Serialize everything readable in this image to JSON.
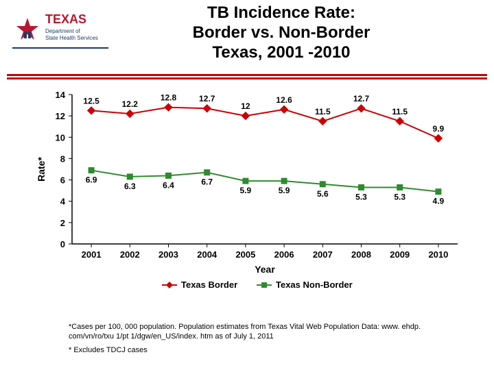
{
  "title": {
    "text": "TB Incidence Rate: Border vs. Non-Border Texas, 2001 -2010",
    "line1": "TB Incidence Rate:",
    "line2": "Border vs. Non-Border",
    "line3": "Texas, 2001 -2010",
    "fontsize": 24,
    "color": "#000000"
  },
  "logo": {
    "name": "Texas Department of State Health Services",
    "text_top": "TEXAS",
    "text_bottom": "Department of State Health Services",
    "accent_color": "#b7182e",
    "navy_color": "#1b3a66"
  },
  "rules": {
    "color": "#cc0000"
  },
  "chart": {
    "type": "line",
    "xlabel": "Year",
    "ylabel": "Rate*",
    "label_fontsize": 14,
    "x_categories": [
      "2001",
      "2002",
      "2003",
      "2004",
      "2005",
      "2006",
      "2007",
      "2008",
      "2009",
      "2010"
    ],
    "ylim": [
      0,
      14
    ],
    "ytick_step": 2,
    "yticks": [
      0,
      2,
      4,
      6,
      8,
      10,
      12,
      14
    ],
    "tick_fontsize": 13,
    "tick_weight": "bold",
    "axis_color": "#000000",
    "background_color": "#ffffff",
    "series": [
      {
        "name": "Texas Border",
        "color": "#cc0000",
        "marker": "diamond",
        "marker_size": 10,
        "line_width": 2,
        "values": [
          12.5,
          12.2,
          12.8,
          12.7,
          12.0,
          12.6,
          11.5,
          12.7,
          11.5,
          9.9
        ],
        "labels": [
          "12.5",
          "12.2",
          "12.8",
          "12.7",
          "12",
          "12.6",
          "11.5",
          "12.7",
          "11.5",
          "9.9"
        ]
      },
      {
        "name": "Texas Non-Border",
        "color": "#2e8b2e",
        "marker": "square",
        "marker_size": 9,
        "line_width": 2,
        "values": [
          6.9,
          6.3,
          6.4,
          6.7,
          5.9,
          5.9,
          5.6,
          5.3,
          5.3,
          4.9
        ],
        "labels": [
          "6.9",
          "6.3",
          "6.4",
          "6.7",
          "5.9",
          "5.9",
          "5.6",
          "5.3",
          "5.3",
          "4.9"
        ]
      }
    ],
    "legend": {
      "position": "bottom-center",
      "fontsize": 13,
      "items": [
        "Texas Border",
        "Texas Non-Border"
      ]
    },
    "datalabel_fontsize": 12,
    "datalabel_weight": "bold"
  },
  "footnotes": {
    "note1": "*Cases per 100, 000 population. Population estimates from Texas Vital Web Population Data: www. ehdp. com/vn/ro/txu 1/pt 1/dgw/en_US/index. htm as of July 1, 2011",
    "note2": "* Excludes TDCJ cases"
  }
}
